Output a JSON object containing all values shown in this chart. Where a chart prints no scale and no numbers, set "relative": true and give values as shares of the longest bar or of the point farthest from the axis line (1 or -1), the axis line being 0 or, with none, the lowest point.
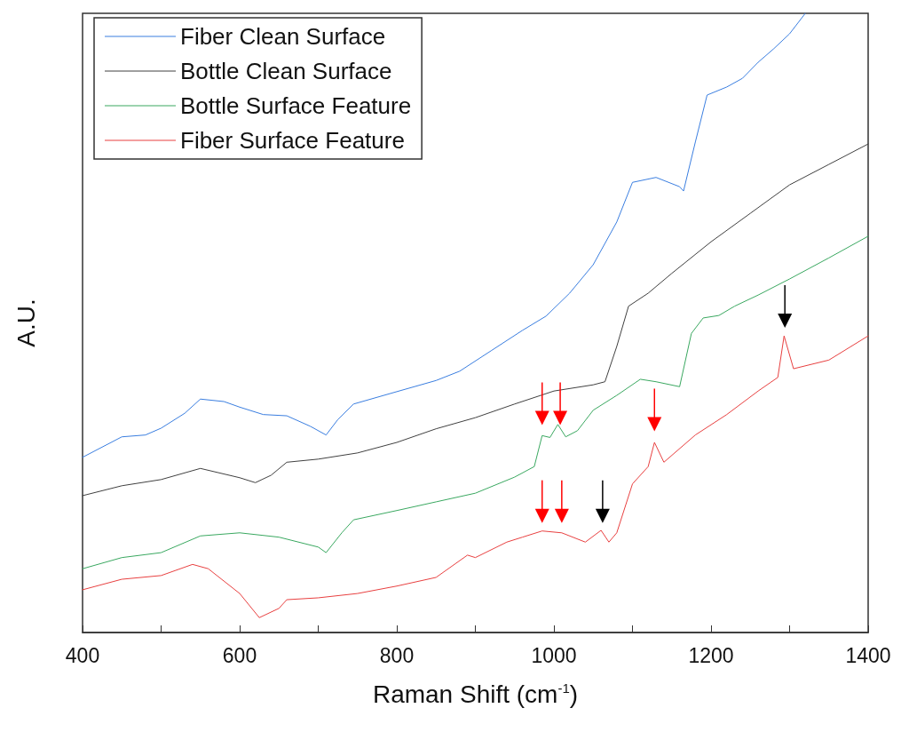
{
  "chart_data": {
    "type": "line",
    "relative": true,
    "xlabel": "Raman Shift (cm$^{-1}$)",
    "ylabel": "A.U.",
    "xlim": [
      400,
      1400
    ],
    "xticks": [
      400,
      {
        "value": 500,
        "label": null
      },
      600,
      {
        "value": 700,
        "label": null
      },
      800,
      {
        "value": 900,
        "label": null
      },
      1000,
      {
        "value": 1100,
        "label": null
      },
      1200,
      {
        "value": 1300,
        "label": null
      },
      1400
    ],
    "grid": false,
    "legend": "top left",
    "marker": "none",
    "line_style": "solid",
    "series": [
      {
        "name": "Fiber Clean Surface",
        "color": "#3a7ee0",
        "x": [
          400,
          450,
          480,
          500,
          530,
          550,
          580,
          600,
          630,
          660,
          690,
          710,
          725,
          745,
          800,
          850,
          880,
          920,
          960,
          990,
          1020,
          1050,
          1080,
          1100,
          1130,
          1160,
          1165,
          1180,
          1195,
          1220,
          1240,
          1260,
          1280,
          1300,
          1320
        ],
        "values": [
          0.283,
          0.316,
          0.319,
          0.33,
          0.354,
          0.377,
          0.373,
          0.364,
          0.352,
          0.35,
          0.333,
          0.319,
          0.344,
          0.369,
          0.389,
          0.407,
          0.422,
          0.455,
          0.488,
          0.511,
          0.548,
          0.594,
          0.663,
          0.727,
          0.735,
          0.72,
          0.713,
          0.792,
          0.868,
          0.881,
          0.895,
          0.921,
          0.943,
          0.967,
          1
        ]
      },
      {
        "name": "Bottle Clean Surface",
        "color": "#404040",
        "x": [
          400,
          450,
          500,
          550,
          600,
          620,
          640,
          660,
          700,
          750,
          800,
          850,
          900,
          950,
          1000,
          1050,
          1065,
          1080,
          1095,
          1120,
          1150,
          1200,
          1250,
          1300,
          1350,
          1400
        ],
        "values": [
          0.221,
          0.237,
          0.247,
          0.265,
          0.25,
          0.242,
          0.254,
          0.275,
          0.28,
          0.29,
          0.307,
          0.329,
          0.347,
          0.369,
          0.39,
          0.4,
          0.405,
          0.462,
          0.527,
          0.548,
          0.58,
          0.631,
          0.677,
          0.723,
          0.756,
          0.789
        ]
      },
      {
        "name": "Bottle Surface Feature",
        "color": "#3aa860",
        "x": [
          400,
          450,
          500,
          550,
          600,
          650,
          700,
          710,
          730,
          745,
          800,
          850,
          900,
          950,
          975,
          985,
          995,
          1005,
          1015,
          1030,
          1050,
          1080,
          1110,
          1130,
          1160,
          1175,
          1190,
          1210,
          1230,
          1260,
          1300,
          1350,
          1400
        ],
        "values": [
          0.103,
          0.121,
          0.129,
          0.156,
          0.161,
          0.154,
          0.138,
          0.129,
          0.161,
          0.182,
          0.197,
          0.211,
          0.225,
          0.251,
          0.268,
          0.318,
          0.315,
          0.336,
          0.316,
          0.326,
          0.359,
          0.383,
          0.409,
          0.405,
          0.397,
          0.483,
          0.508,
          0.512,
          0.527,
          0.545,
          0.571,
          0.605,
          0.64
        ]
      },
      {
        "name": "Fiber Surface Feature",
        "color": "#e84040",
        "x": [
          400,
          450,
          500,
          540,
          560,
          600,
          625,
          650,
          660,
          700,
          750,
          800,
          850,
          890,
          900,
          940,
          960,
          985,
          1010,
          1040,
          1060,
          1070,
          1080,
          1100,
          1120,
          1128,
          1140,
          1180,
          1220,
          1260,
          1285,
          1293,
          1305,
          1350,
          1400
        ],
        "values": [
          0.069,
          0.086,
          0.092,
          0.11,
          0.103,
          0.063,
          0.024,
          0.039,
          0.053,
          0.056,
          0.063,
          0.075,
          0.089,
          0.125,
          0.121,
          0.146,
          0.154,
          0.164,
          0.161,
          0.146,
          0.165,
          0.146,
          0.161,
          0.24,
          0.268,
          0.307,
          0.275,
          0.319,
          0.352,
          0.39,
          0.412,
          0.479,
          0.426,
          0.44,
          0.479
        ]
      }
    ]
  }
}
